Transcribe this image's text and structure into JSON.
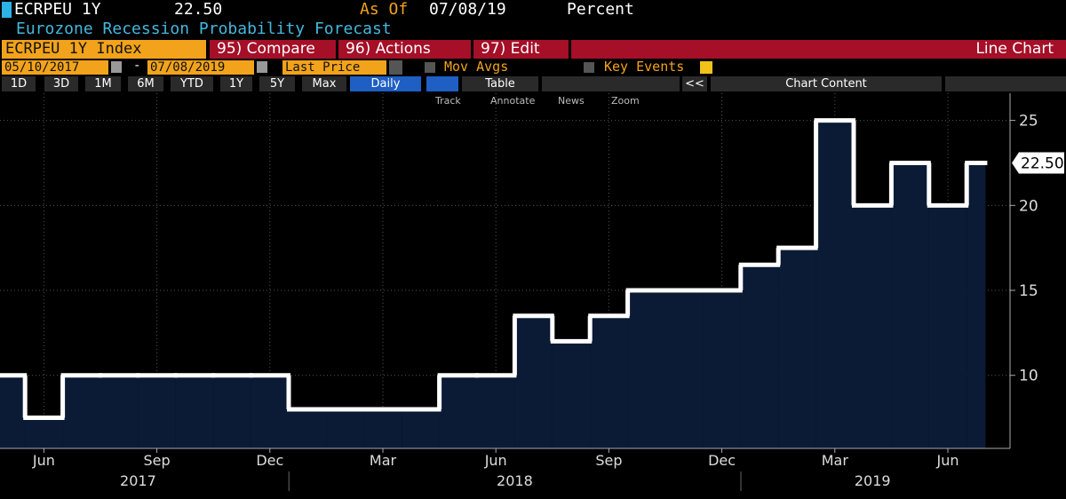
{
  "header": {
    "ticker": "ECRPEU 1Y",
    "last": "22.50",
    "as_of_label": "As Of",
    "as_of_date": "07/08/19",
    "units": "Percent",
    "description": "Eurozone Recession Probability Forecast"
  },
  "toolbar": {
    "security": "ECRPEU 1Y Index",
    "compare": "95) Compare",
    "actions": "96) Actions",
    "edit": "97) Edit",
    "view": "Line Chart",
    "start_date": "05/10/2017",
    "date_separator": "-",
    "end_date": "07/08/2019",
    "field": "Last Price",
    "mov_avgs": "Mov Avgs",
    "key_events": "Key Events"
  },
  "range_buttons": [
    "1D",
    "3D",
    "1M",
    "6M",
    "YTD",
    "1Y",
    "5Y",
    "Max"
  ],
  "periodicity": "Daily",
  "table_button": "Table",
  "collapse_button": "<<",
  "chart_content": "Chart Content",
  "tools": [
    "Track",
    "Annotate",
    "News",
    "Zoom"
  ],
  "chart_data": {
    "type": "line",
    "categories": [
      "2017-05",
      "2017-06",
      "2017-07",
      "2017-08",
      "2017-09",
      "2017-10",
      "2017-11",
      "2017-12",
      "2018-01",
      "2018-02",
      "2018-03",
      "2018-04",
      "2018-05",
      "2018-06",
      "2018-07",
      "2018-08",
      "2018-09",
      "2018-10",
      "2018-11",
      "2018-12",
      "2019-01",
      "2019-02",
      "2019-03",
      "2019-04",
      "2019-05",
      "2019-06",
      "2019-07"
    ],
    "series": [
      {
        "name": "ECRPEU 1Y Index",
        "color": "#ffffff",
        "area_color": "#0b1b36",
        "values": [
          10,
          7.5,
          10,
          10,
          10,
          10,
          10,
          10,
          8,
          8,
          8,
          8,
          10,
          10,
          13.5,
          12,
          13.5,
          15,
          15,
          15,
          16.5,
          17.5,
          25,
          20,
          22.5,
          20,
          22.5
        ]
      }
    ],
    "last_value_label": "22.50",
    "xticks": [
      {
        "value": "2017-06",
        "label": "Jun"
      },
      {
        "value": "2017-09",
        "label": "Sep"
      },
      {
        "value": "2017-12",
        "label": "Dec"
      },
      {
        "value": "2018-03",
        "label": "Mar"
      },
      {
        "value": "2018-06",
        "label": "Jun"
      },
      {
        "value": "2018-09",
        "label": "Sep"
      },
      {
        "value": "2018-12",
        "label": "Dec"
      },
      {
        "value": "2019-03",
        "label": "Mar"
      },
      {
        "value": "2019-06",
        "label": "Jun"
      }
    ],
    "xgroups": [
      "2017",
      "2018",
      "2019"
    ],
    "ylim": [
      5.7,
      26.6
    ],
    "yticks": [
      10,
      15,
      20,
      25
    ],
    "grid": true,
    "step": true
  }
}
